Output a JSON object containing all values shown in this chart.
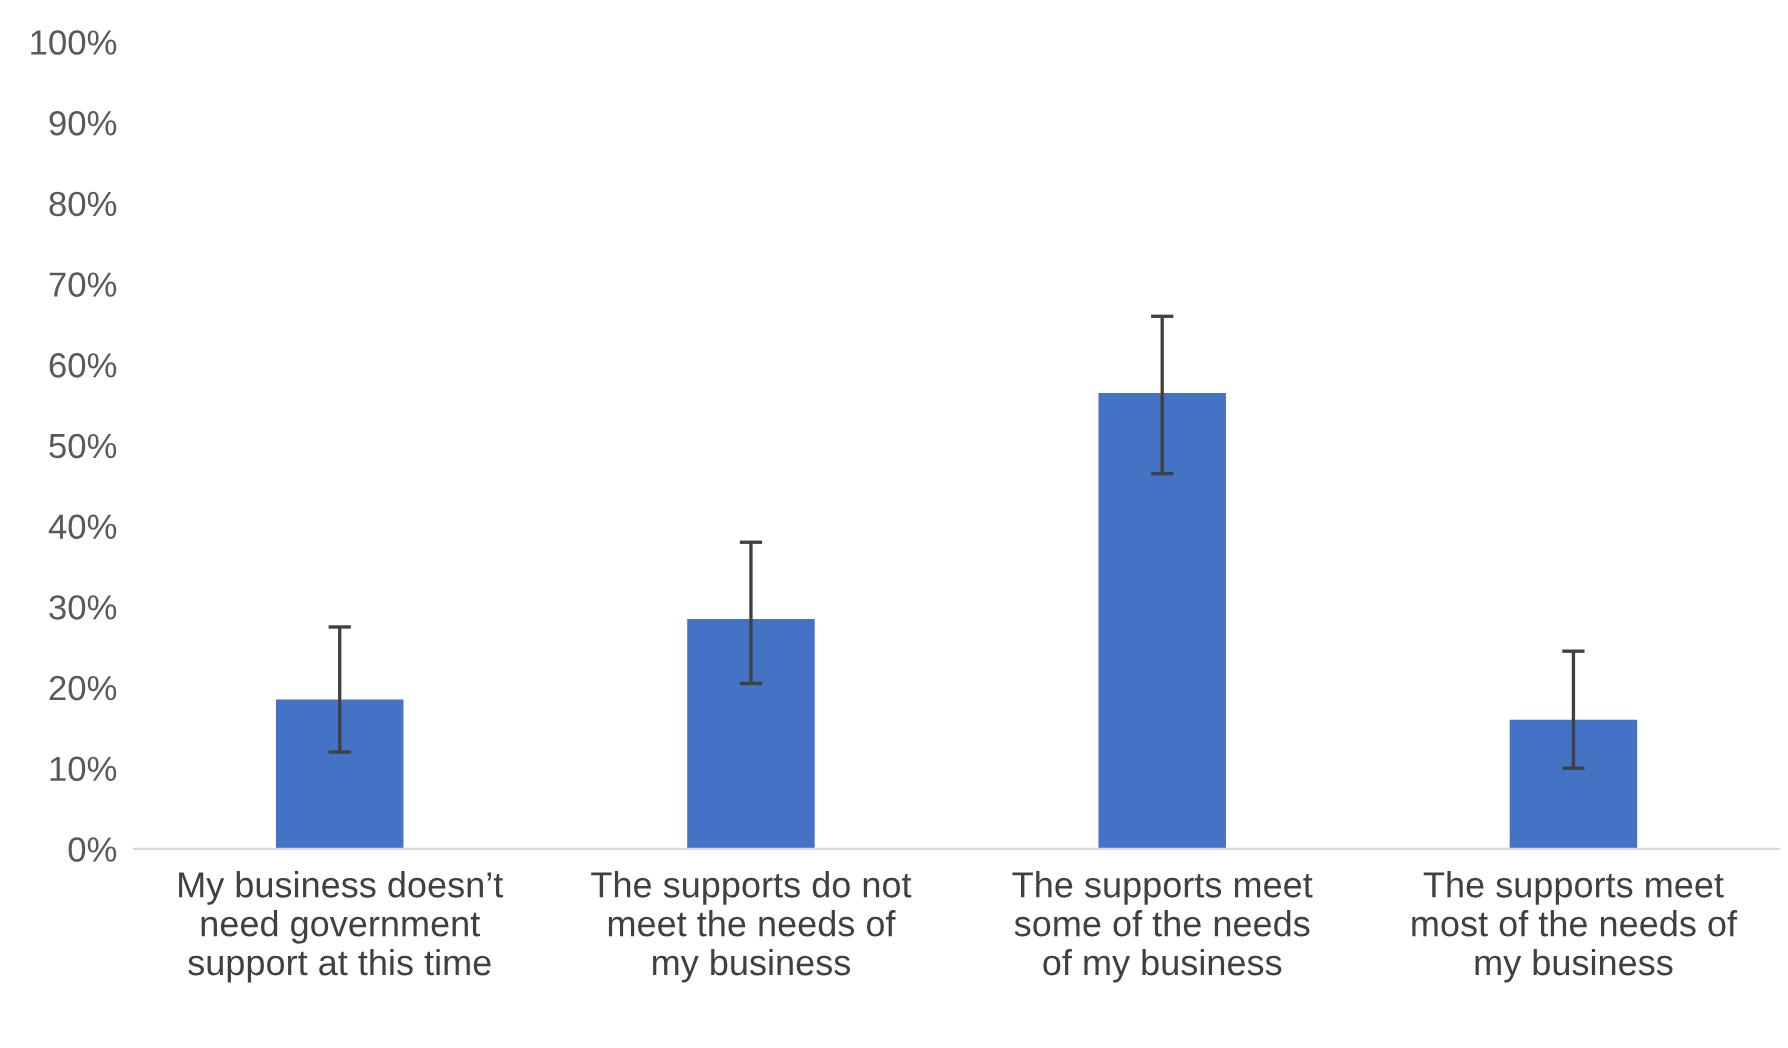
{
  "chart_data": {
    "type": "bar",
    "categories": [
      "My business doesn’t\nneed government\nsupport at this time",
      "The supports do not\nmeet the needs of\nmy business",
      "The supports meet\nsome of the needs\nof my business",
      "The supports meet\nmost of the needs of\nmy business"
    ],
    "values": [
      18.5,
      28.5,
      56.5,
      16
    ],
    "errors": [
      [
        12,
        27.5
      ],
      [
        20.5,
        38
      ],
      [
        46.5,
        66
      ],
      [
        10,
        24.5
      ]
    ],
    "color": "#4472c4",
    "ylim": [
      0,
      100
    ],
    "yticks": [
      {
        "value": 0,
        "label": "0%"
      },
      {
        "value": 10,
        "label": "10%"
      },
      {
        "value": 20,
        "label": "20%"
      },
      {
        "value": 30,
        "label": "30%"
      },
      {
        "value": 40,
        "label": "40%"
      },
      {
        "value": 50,
        "label": "50%"
      },
      {
        "value": 60,
        "label": "60%"
      },
      {
        "value": 70,
        "label": "70%"
      },
      {
        "value": 80,
        "label": "80%"
      },
      {
        "value": 90,
        "label": "90%"
      },
      {
        "value": 100,
        "label": "100%"
      }
    ],
    "grid": false,
    "legend": false
  }
}
